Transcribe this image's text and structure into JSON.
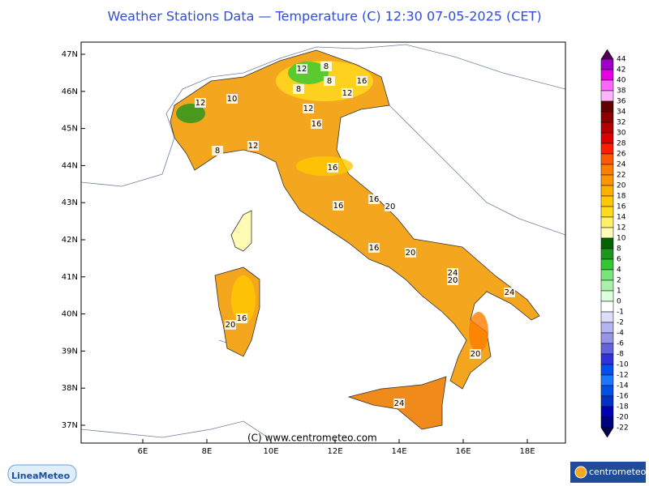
{
  "header": {
    "title": "Weather Stations Data — Temperature (C)   12:30 07-05-2025 (CET)"
  },
  "map": {
    "lat_labels": [
      "47N",
      "46N",
      "45N",
      "44N",
      "43N",
      "42N",
      "41N",
      "40N",
      "39N",
      "38N",
      "37N"
    ],
    "lon_labels": [
      "6E",
      "8E",
      "10E",
      "12E",
      "14E",
      "16E",
      "18E"
    ],
    "contour_labels": [
      12,
      8,
      8,
      8,
      16,
      12,
      12,
      10,
      12,
      16,
      8,
      12,
      16,
      16,
      16,
      20,
      16,
      20,
      24,
      20,
      24,
      16,
      20,
      20,
      24
    ],
    "copyright": "(C) www.centrometeo.com"
  },
  "colorbar": {
    "labels": [
      44,
      42,
      40,
      38,
      36,
      34,
      32,
      30,
      28,
      26,
      24,
      22,
      20,
      18,
      16,
      14,
      12,
      10,
      8,
      6,
      4,
      2,
      1,
      0,
      -1,
      -2,
      -4,
      -6,
      -8,
      -10,
      -12,
      -14,
      -16,
      -18,
      -20,
      -22
    ],
    "colors": [
      "#a000c8",
      "#e600e6",
      "#ff66ff",
      "#ffb4ff",
      "#640000",
      "#8c0000",
      "#b40000",
      "#dc0000",
      "#ff1e00",
      "#ff5a00",
      "#ff7d00",
      "#ff9600",
      "#ffaf00",
      "#ffc800",
      "#ffdc1e",
      "#fff064",
      "#fffab4",
      "#006400",
      "#1e961e",
      "#32c832",
      "#78e678",
      "#aaf0aa",
      "#dcffdc",
      "#ffffff",
      "#dcdcff",
      "#b4b4f0",
      "#9696e6",
      "#6464dc",
      "#3232dc",
      "#0050f0",
      "#1e78ff",
      "#0050e6",
      "#0032c8",
      "#0000b4",
      "#000082"
    ],
    "over_color": "#500050",
    "under_color": "#000050"
  },
  "logos": {
    "left": "LineaMeteo",
    "right": "centrometeo"
  }
}
